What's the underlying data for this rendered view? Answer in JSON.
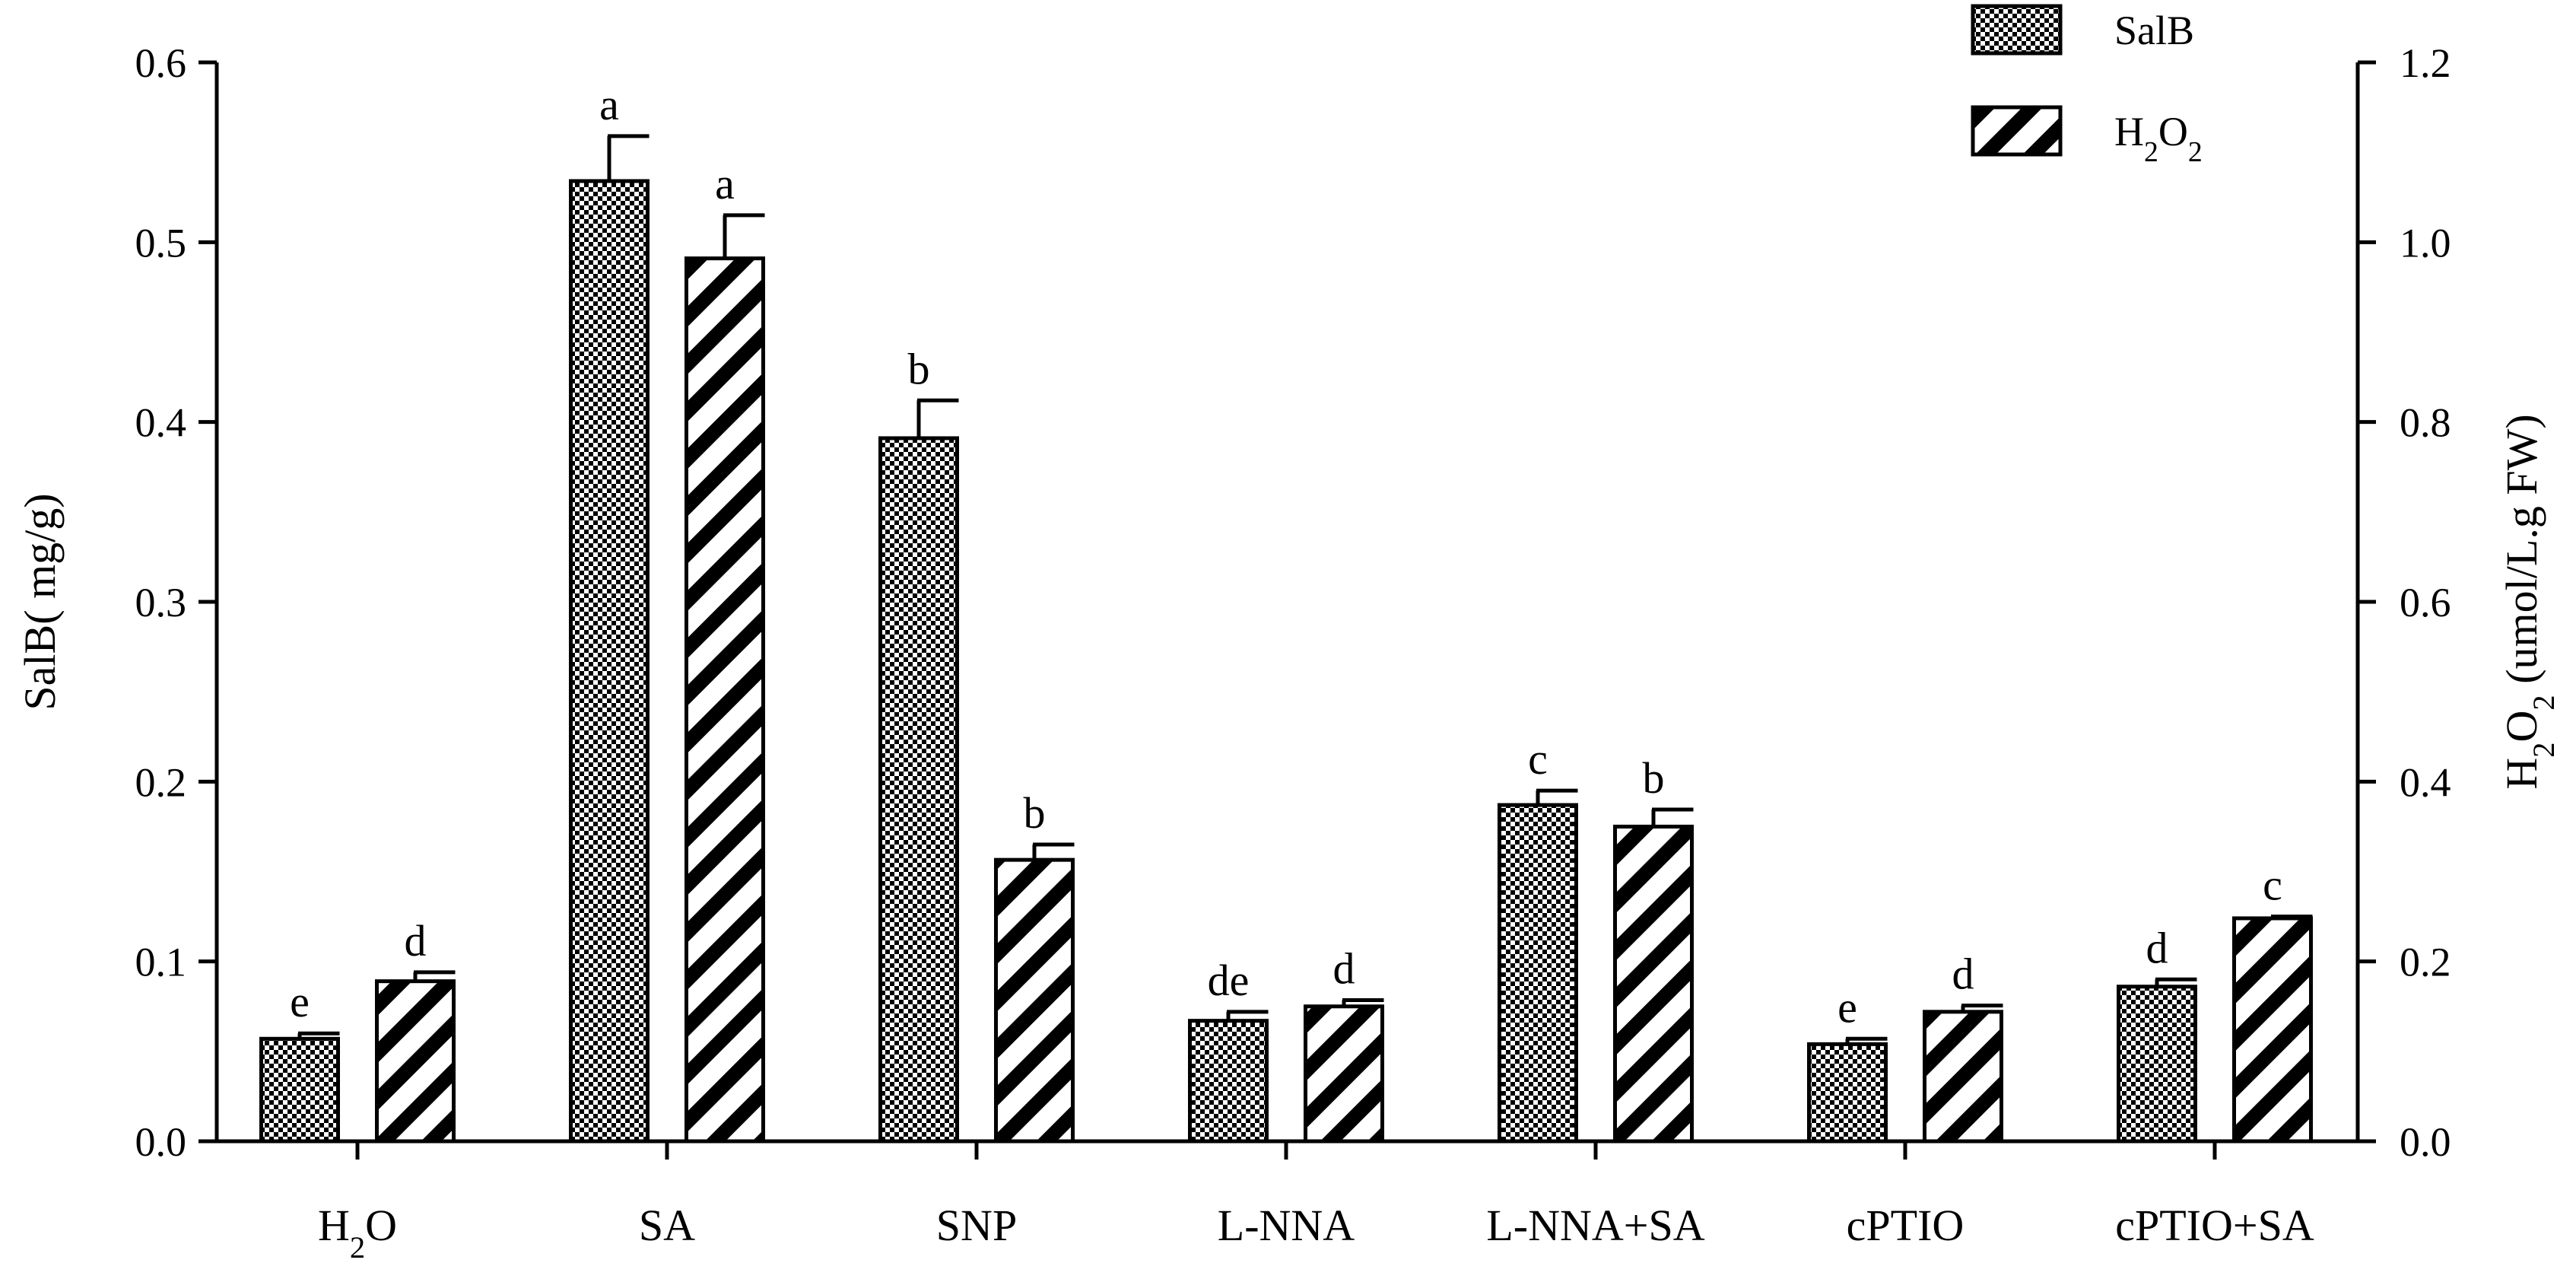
{
  "chart_data": {
    "type": "bar",
    "categories": [
      "H2O",
      "SA",
      "SNP",
      "L-NNA",
      "L-NNA+SA",
      "cPTIO",
      "cPTIO+SA"
    ],
    "category_display": [
      {
        "parts": [
          {
            "t": "H"
          },
          {
            "t": "2",
            "sub": true
          },
          {
            "t": "O"
          }
        ]
      },
      {
        "parts": [
          {
            "t": "SA"
          }
        ]
      },
      {
        "parts": [
          {
            "t": "SNP"
          }
        ]
      },
      {
        "parts": [
          {
            "t": "L-NNA"
          }
        ]
      },
      {
        "parts": [
          {
            "t": "L-NNA+SA"
          }
        ]
      },
      {
        "parts": [
          {
            "t": "cPTIO"
          }
        ]
      },
      {
        "parts": [
          {
            "t": "cPTIO+SA"
          }
        ]
      }
    ],
    "series": [
      {
        "name": "SalB",
        "axis": "left",
        "pattern": "checker",
        "values": [
          0.057,
          0.534,
          0.391,
          0.067,
          0.187,
          0.054,
          0.086
        ],
        "errors": [
          0.003,
          0.025,
          0.021,
          0.005,
          0.008,
          0.003,
          0.004
        ],
        "letters": [
          "e",
          "a",
          "b",
          "de",
          "c",
          "e",
          "d"
        ]
      },
      {
        "name": "H2O2",
        "axis": "right",
        "pattern": "diagonal",
        "values": [
          0.178,
          0.982,
          0.313,
          0.15,
          0.35,
          0.144,
          0.248
        ],
        "errors": [
          0.01,
          0.048,
          0.017,
          0.007,
          0.019,
          0.007,
          0.002
        ],
        "letters": [
          "d",
          "a",
          "b",
          "d",
          "b",
          "d",
          "c"
        ]
      }
    ],
    "y_left": {
      "ylim": [
        0,
        0.6
      ],
      "ticks": [
        "0.0",
        "0.1",
        "0.2",
        "0.3",
        "0.4",
        "0.5",
        "0.6"
      ],
      "label": "SalB( mg/g)"
    },
    "y_right": {
      "ylim": [
        0,
        1.2
      ],
      "ticks": [
        "0.0",
        "0.2",
        "0.4",
        "0.6",
        "0.8",
        "1.0",
        "1.2"
      ],
      "label_parts": [
        {
          "t": "H"
        },
        {
          "t": "2",
          "sub": true
        },
        {
          "t": "O"
        },
        {
          "t": "2",
          "sub": true
        },
        {
          "t": " (umol/L.g FW)"
        }
      ]
    },
    "legend": {
      "position": "top-right",
      "entries": [
        {
          "pattern": "checker",
          "parts": [
            {
              "t": "SalB"
            }
          ]
        },
        {
          "pattern": "diagonal",
          "parts": [
            {
              "t": "H"
            },
            {
              "t": "2",
              "sub": true
            },
            {
              "t": "O"
            },
            {
              "t": "2",
              "sub": true
            }
          ]
        }
      ]
    },
    "grid": false,
    "error_bars": true
  }
}
